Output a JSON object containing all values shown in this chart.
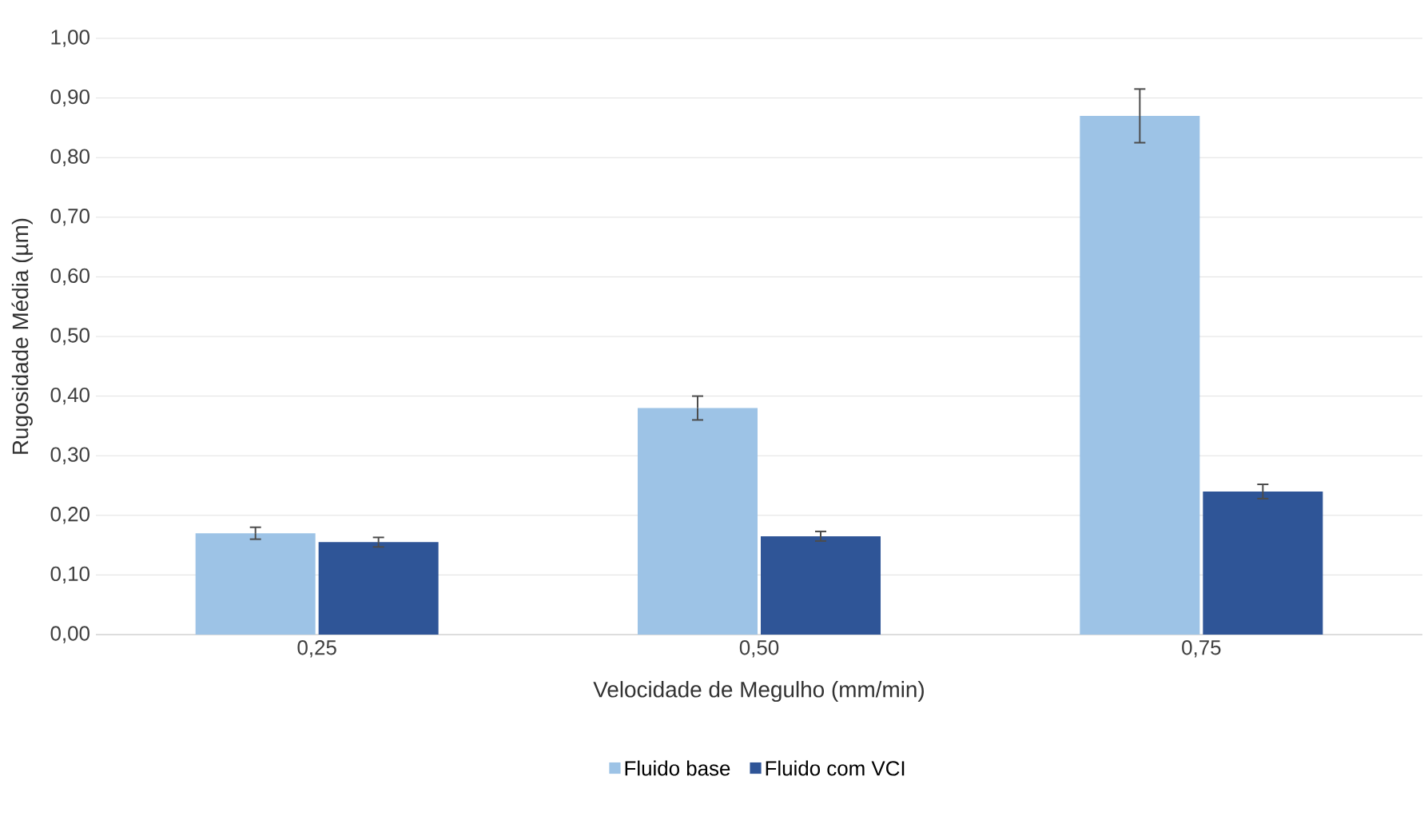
{
  "chart_data": {
    "type": "bar",
    "xlabel": "Velocidade de Megulho (mm/min)",
    "ylabel": "Rugosidade Média (µm)",
    "categories": [
      "0,25",
      "0,50",
      "0,75"
    ],
    "series": [
      {
        "name": "Fluido base",
        "color": "#9dc3e6",
        "values": [
          0.17,
          0.38,
          0.87
        ],
        "errors": [
          0.01,
          0.02,
          0.045
        ]
      },
      {
        "name": "Fluido com VCI",
        "color": "#2f5597",
        "values": [
          0.155,
          0.165,
          0.24
        ],
        "errors": [
          0.008,
          0.008,
          0.012
        ]
      }
    ],
    "ylim": [
      0,
      1
    ],
    "yticks": [
      {
        "value": 0,
        "label": "0,00"
      },
      {
        "value": 0.1,
        "label": "0,10"
      },
      {
        "value": 0.2,
        "label": "0,20"
      },
      {
        "value": 0.3,
        "label": "0,30"
      },
      {
        "value": 0.4,
        "label": "0,40"
      },
      {
        "value": 0.5,
        "label": "0,50"
      },
      {
        "value": 0.6,
        "label": "0,60"
      },
      {
        "value": 0.7,
        "label": "0,70"
      },
      {
        "value": 0.8,
        "label": "0,80"
      },
      {
        "value": 0.9,
        "label": "0,90"
      },
      {
        "value": 1,
        "label": "1,00"
      }
    ],
    "grid": "y",
    "legend": "bottom"
  }
}
